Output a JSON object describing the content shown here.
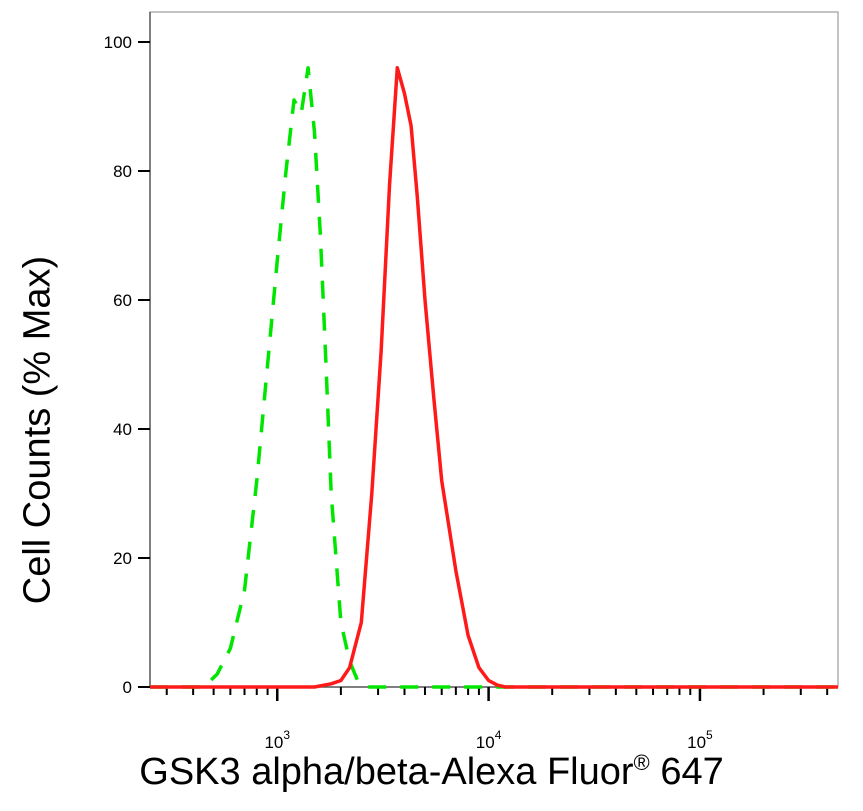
{
  "chart_data": {
    "type": "line",
    "xlabel": "GSK3 alpha/beta-Alexa Fluor",
    "xlabel_mark": "®",
    "xlabel_tail": " 647",
    "ylabel": "Cell Counts (% Max)",
    "xscale": "log",
    "xlim": [
      250,
      450000
    ],
    "ylim": [
      0,
      100
    ],
    "yticks": [
      0,
      20,
      40,
      60,
      80,
      100
    ],
    "xticks": [
      {
        "value": 1000,
        "base": "10",
        "exp": "3"
      },
      {
        "value": 10000,
        "base": "10",
        "exp": "4"
      },
      {
        "value": 100000,
        "base": "10",
        "exp": "5"
      }
    ],
    "grid": false,
    "series": [
      {
        "color": "#00e600",
        "style": "dashed",
        "x": [
          250,
          400,
          450,
          520,
          600,
          700,
          800,
          900,
          1000,
          1100,
          1200,
          1300,
          1400,
          1500,
          1600,
          1700,
          1800,
          2000,
          2200,
          2400,
          2600,
          3000,
          4000,
          10000,
          100000,
          450000
        ],
        "y": [
          0,
          0,
          0,
          2,
          6,
          15,
          32,
          50,
          66,
          80,
          91,
          89,
          96,
          86,
          70,
          50,
          30,
          10,
          4,
          1,
          0,
          0,
          0,
          0,
          0,
          0
        ]
      },
      {
        "color": "#ff1a1a",
        "style": "solid",
        "x": [
          250,
          1000,
          1500,
          1800,
          2000,
          2200,
          2500,
          2800,
          3100,
          3400,
          3700,
          4000,
          4300,
          4600,
          5000,
          5500,
          6000,
          7000,
          8000,
          9000,
          10000,
          11000,
          12000,
          100000,
          450000
        ],
        "y": [
          0,
          0,
          0,
          0.5,
          1,
          3,
          10,
          30,
          52,
          78,
          96,
          92,
          87,
          76,
          60,
          45,
          32,
          18,
          8,
          3,
          1,
          0.3,
          0,
          0,
          0
        ]
      }
    ]
  }
}
